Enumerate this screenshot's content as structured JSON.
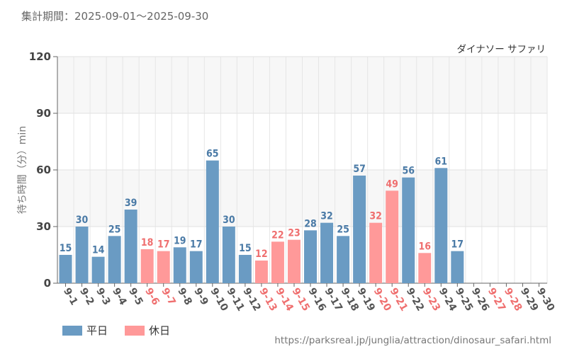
{
  "header": {
    "period": "集計期間：2025-09-01〜2025-09-30"
  },
  "legend": {
    "weekday_label": "平日",
    "holiday_label": "休日"
  },
  "source": "https://parksreal.jp/junglia/attraction/dinosaur_safari.html",
  "colors": {
    "weekday": "#6a9bc3",
    "holiday": "#ff9999",
    "weekday_text": "#4a7aa6",
    "holiday_text": "#ef6f6f"
  },
  "chart_data": {
    "type": "bar",
    "title": "ダイナソー サファリ",
    "xlabel": "",
    "ylabel": "待ち時間（分）min",
    "ylim": [
      0,
      120
    ],
    "yticks": [
      0,
      30,
      60,
      90,
      120
    ],
    "grid": true,
    "legend_position": "bottom-left",
    "categories": [
      "9-1",
      "9-2",
      "9-3",
      "9-4",
      "9-5",
      "9-6",
      "9-7",
      "9-8",
      "9-9",
      "9-10",
      "9-11",
      "9-12",
      "9-13",
      "9-14",
      "9-15",
      "9-16",
      "9-17",
      "9-18",
      "9-19",
      "9-20",
      "9-21",
      "9-22",
      "9-23",
      "9-24",
      "9-25",
      "9-26",
      "9-27",
      "9-28",
      "9-29",
      "9-30"
    ],
    "holidays": [
      "9-6",
      "9-7",
      "9-13",
      "9-14",
      "9-15",
      "9-20",
      "9-21",
      "9-23",
      "9-27",
      "9-28"
    ],
    "values": [
      15,
      30,
      14,
      25,
      39,
      18,
      17,
      19,
      17,
      65,
      30,
      15,
      12,
      22,
      23,
      28,
      32,
      25,
      57,
      32,
      49,
      56,
      16,
      61,
      17,
      null,
      null,
      null,
      null,
      null
    ]
  }
}
